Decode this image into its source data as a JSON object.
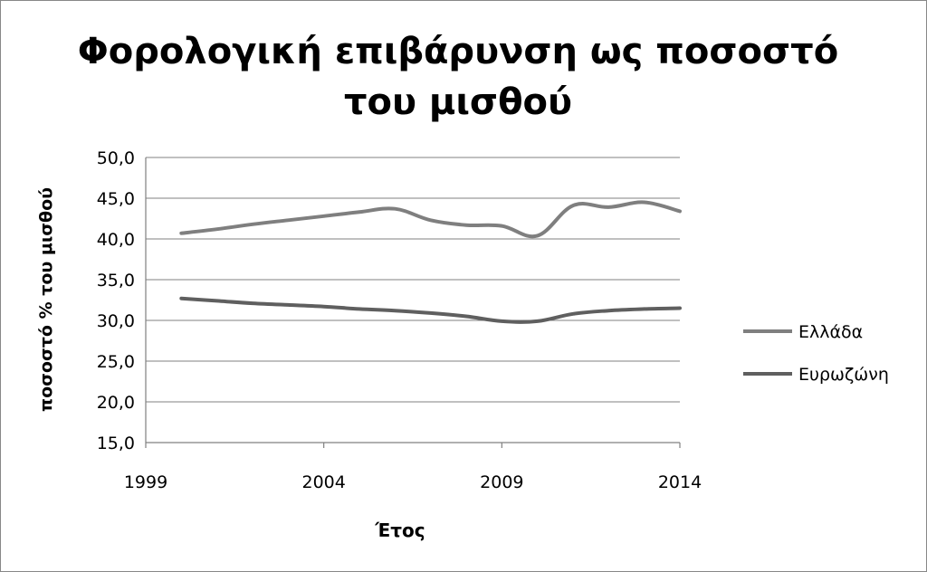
{
  "chart_data": {
    "type": "line",
    "title_line1": "Φορολογική επιβάρυνση ως ποσοστό",
    "title_line2": "του μισθού",
    "xlabel": "Έτος",
    "ylabel": "ποσοστό % του μισθού",
    "xlim": [
      1999,
      2014
    ],
    "ylim": [
      15,
      50
    ],
    "x_ticks": [
      "1999",
      "2004",
      "2009",
      "2014"
    ],
    "y_ticks": [
      "50,0",
      "45,0",
      "40,0",
      "35,0",
      "30,0",
      "25,0",
      "20,0",
      "15,0"
    ],
    "grid": true,
    "legend_position": "right",
    "series": [
      {
        "name": "Ελλάδα",
        "color": "#7f7f7f",
        "x": [
          2000,
          2001,
          2002,
          2003,
          2004,
          2005,
          2006,
          2007,
          2008,
          2009,
          2010,
          2011,
          2012,
          2013,
          2014
        ],
        "y": [
          40.7,
          41.2,
          41.8,
          42.3,
          42.8,
          43.3,
          43.7,
          42.3,
          41.7,
          41.6,
          40.4,
          44.1,
          43.9,
          44.5,
          43.4
        ]
      },
      {
        "name": "Ευρωζώνη",
        "color": "#5f5f5f",
        "x": [
          2000,
          2001,
          2002,
          2003,
          2004,
          2005,
          2006,
          2007,
          2008,
          2009,
          2010,
          2011,
          2012,
          2013,
          2014
        ],
        "y": [
          32.7,
          32.4,
          32.1,
          31.9,
          31.7,
          31.4,
          31.2,
          30.9,
          30.5,
          29.9,
          29.9,
          30.8,
          31.2,
          31.4,
          31.5
        ]
      }
    ]
  }
}
